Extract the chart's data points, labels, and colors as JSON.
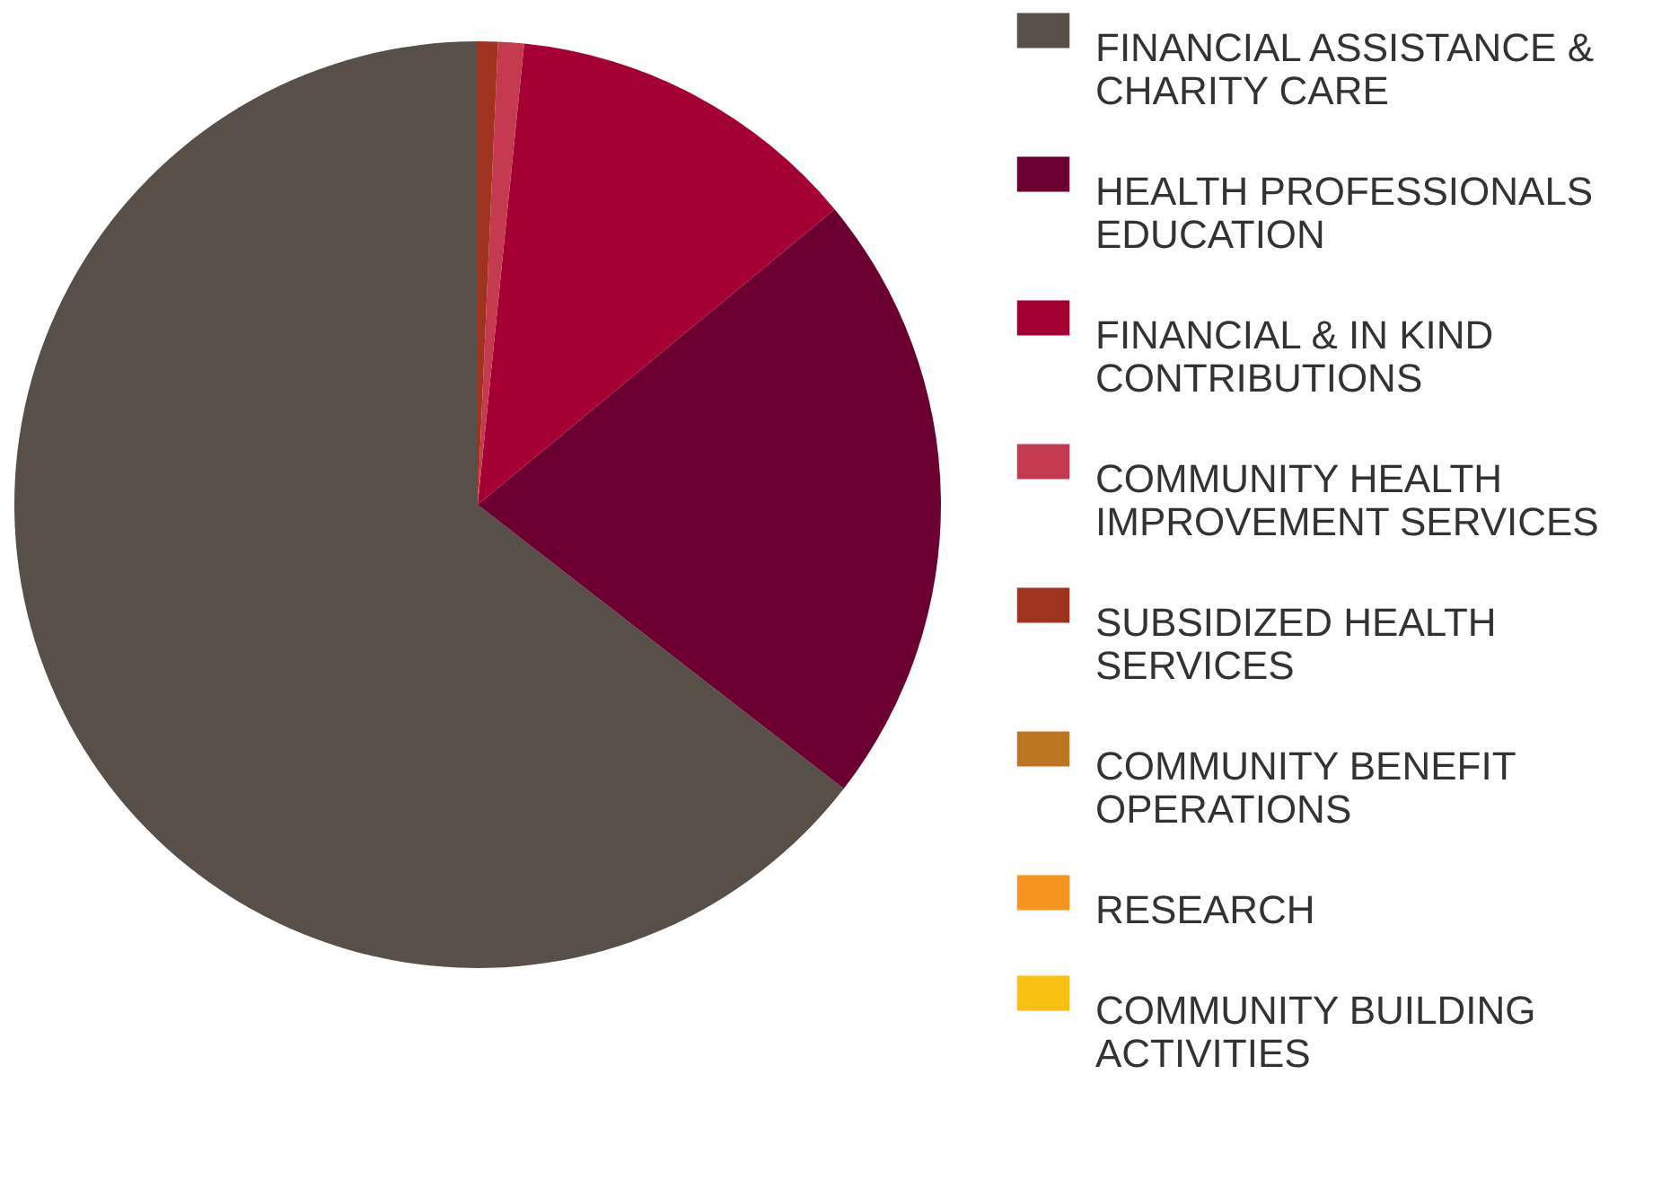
{
  "chart_data": {
    "type": "pie",
    "categories": [
      "FINANCIAL ASSISTANCE & CHARITY CARE",
      "HEALTH PROFESSIONALS EDUCATION",
      "FINANCIAL &  IN KIND CONTRIBUTIONS",
      "COMMUNITY HEALTH IMPROVEMENT SERVICES",
      "SUBSIDIZED HEALTH SERVICES",
      "COMMUNITY BENEFIT OPERATIONS",
      "RESEARCH",
      "COMMUNITY BUILDING ACTIVITIES"
    ],
    "values": [
      64.5,
      21.5,
      12.4,
      0.9,
      0.7,
      0,
      0,
      0
    ],
    "colors": [
      "#584f49",
      "#6b0030",
      "#a50034",
      "#c63a50",
      "#a03220",
      "#bc7621",
      "#f5941e",
      "#f9c011"
    ],
    "legend": "right"
  }
}
